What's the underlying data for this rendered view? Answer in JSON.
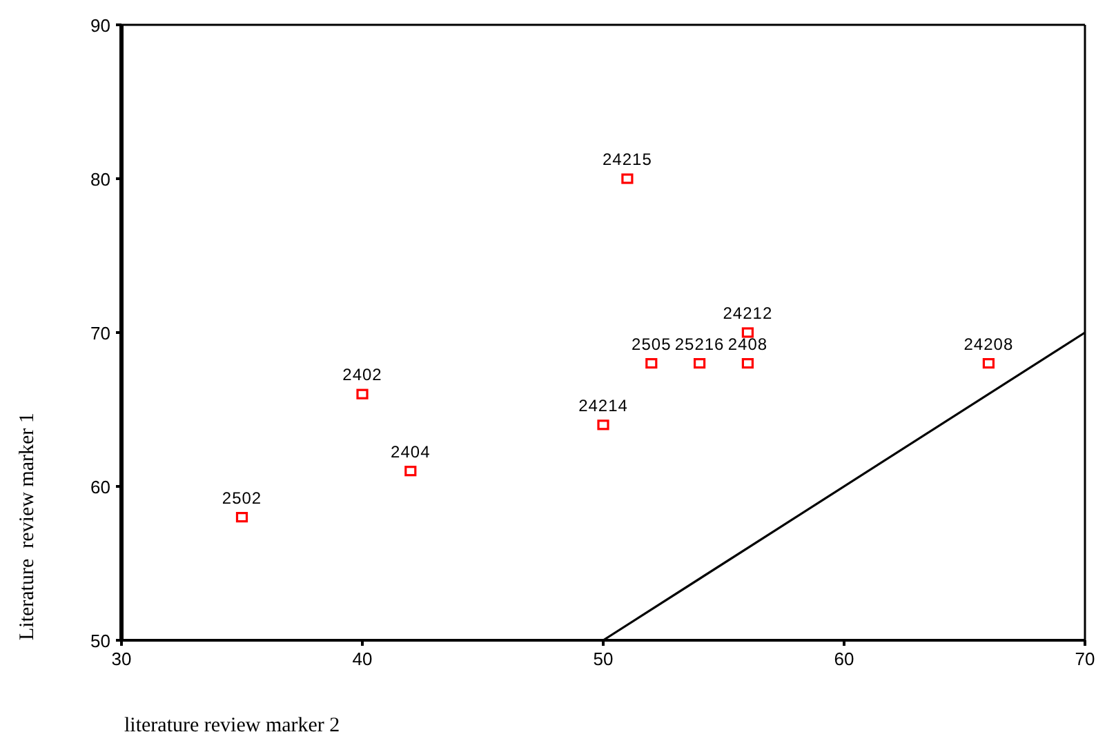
{
  "chart_data": {
    "type": "scatter",
    "xlabel": "literature review marker 2",
    "ylabel": "Literature  review marker 1",
    "xlim": [
      30,
      70
    ],
    "xticks": [
      30,
      40,
      50,
      60,
      70
    ],
    "ylim": [
      50,
      90
    ],
    "yticks": [
      50,
      60,
      70,
      80,
      90
    ],
    "grid": false,
    "series": [
      {
        "marker": "square",
        "color": "#ff0000",
        "x": [
          35,
          40,
          42,
          50,
          51,
          52,
          54,
          56,
          56,
          66
        ],
        "values": [
          58,
          66,
          61,
          64,
          80,
          68,
          68,
          68,
          70,
          68
        ]
      },
      {
        "type": "line",
        "marker": "none",
        "color": "#000000",
        "x": [
          50,
          70
        ],
        "values": [
          50,
          70
        ]
      }
    ],
    "annotations": [
      {
        "text": "2502",
        "x": 35,
        "y": 58
      },
      {
        "text": "2402",
        "x": 40,
        "y": 66
      },
      {
        "text": "2404",
        "x": 42,
        "y": 61
      },
      {
        "text": "24214",
        "x": 50,
        "y": 64
      },
      {
        "text": "24215",
        "x": 51,
        "y": 80
      },
      {
        "text": "2505",
        "x": 52,
        "y": 68
      },
      {
        "text": "25216",
        "x": 54,
        "y": 68
      },
      {
        "text": "2408",
        "x": 56,
        "y": 68
      },
      {
        "text": "24212",
        "x": 56,
        "y": 70
      },
      {
        "text": "24208",
        "x": 66,
        "y": 68
      }
    ]
  }
}
